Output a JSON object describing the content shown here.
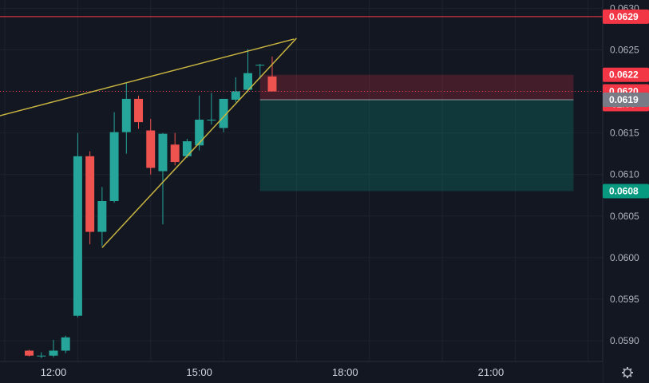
{
  "chart_data": {
    "type": "candlestick",
    "title": "",
    "xlabel": "",
    "ylabel": "",
    "ylim": [
      0.05875,
      0.0631
    ],
    "y_ticks": [
      "0.0590",
      "0.0595",
      "0.0600",
      "0.0605",
      "0.0610",
      "0.0615",
      "0.0620",
      "0.0625",
      "0.0630"
    ],
    "x_ticks": [
      {
        "label": "12:00",
        "hour": 12
      },
      {
        "label": "15:00",
        "hour": 15
      },
      {
        "label": "18:00",
        "hour": 18
      },
      {
        "label": "21:00",
        "hour": 21
      }
    ],
    "x_range_hours": [
      10.9,
      23.3
    ],
    "interval_minutes": 15,
    "grid": true,
    "candles": [
      {
        "t": 11.5,
        "o": 0.05888,
        "h": 0.05889,
        "l": 0.05881,
        "c": 0.05882
      },
      {
        "t": 11.75,
        "o": 0.05882,
        "h": 0.05886,
        "l": 0.05879,
        "c": 0.05882
      },
      {
        "t": 12.0,
        "o": 0.05882,
        "h": 0.05901,
        "l": 0.0588,
        "c": 0.05888
      },
      {
        "t": 12.25,
        "o": 0.05888,
        "h": 0.05906,
        "l": 0.05885,
        "c": 0.05904
      },
      {
        "t": 12.5,
        "o": 0.0593,
        "h": 0.0615,
        "l": 0.05928,
        "c": 0.06122
      },
      {
        "t": 12.75,
        "o": 0.06122,
        "h": 0.06128,
        "l": 0.06016,
        "c": 0.06031
      },
      {
        "t": 13.0,
        "o": 0.06031,
        "h": 0.06085,
        "l": 0.06014,
        "c": 0.06068
      },
      {
        "t": 13.25,
        "o": 0.06068,
        "h": 0.06175,
        "l": 0.06066,
        "c": 0.06151
      },
      {
        "t": 13.5,
        "o": 0.06151,
        "h": 0.06211,
        "l": 0.06125,
        "c": 0.06191
      },
      {
        "t": 13.75,
        "o": 0.06191,
        "h": 0.06195,
        "l": 0.06155,
        "c": 0.06163
      },
      {
        "t": 14.0,
        "o": 0.06153,
        "h": 0.06167,
        "l": 0.061,
        "c": 0.06108
      },
      {
        "t": 14.25,
        "o": 0.06104,
        "h": 0.0615,
        "l": 0.0604,
        "c": 0.06149
      },
      {
        "t": 14.5,
        "o": 0.06136,
        "h": 0.0615,
        "l": 0.06111,
        "c": 0.06115
      },
      {
        "t": 14.75,
        "o": 0.06122,
        "h": 0.06143,
        "l": 0.0612,
        "c": 0.0614
      },
      {
        "t": 15.0,
        "o": 0.06135,
        "h": 0.06195,
        "l": 0.06129,
        "c": 0.06166
      },
      {
        "t": 15.25,
        "o": 0.06166,
        "h": 0.06198,
        "l": 0.0616,
        "c": 0.06166
      },
      {
        "t": 15.5,
        "o": 0.06156,
        "h": 0.06191,
        "l": 0.06151,
        "c": 0.06191
      },
      {
        "t": 15.75,
        "o": 0.0619,
        "h": 0.06217,
        "l": 0.06187,
        "c": 0.062
      },
      {
        "t": 16.0,
        "o": 0.06202,
        "h": 0.06251,
        "l": 0.06199,
        "c": 0.06222
      },
      {
        "t": 16.25,
        "o": 0.06232,
        "h": 0.06233,
        "l": 0.06215,
        "c": 0.06232
      },
      {
        "t": 16.5,
        "o": 0.06218,
        "h": 0.06242,
        "l": 0.062,
        "c": 0.062
      }
    ],
    "trendlines": [
      {
        "from": {
          "t": 10.85,
          "v": 0.0617
        },
        "to": {
          "t": 16.95,
          "v": 0.06263
        },
        "color": "#c8b441"
      },
      {
        "from": {
          "t": 13.0,
          "v": 0.06012
        },
        "to": {
          "t": 17.0,
          "v": 0.06264
        },
        "color": "#c8b441"
      }
    ],
    "position": {
      "time_start": 16.25,
      "time_end": 22.7,
      "stop": 0.0622,
      "entry": 0.0619,
      "target": 0.0608,
      "stop_fill": "rgba(242,54,69,0.22)",
      "target_fill": "rgba(8,153,129,0.25)"
    },
    "horizontal_line": {
      "value": 0.0629,
      "color": "#f23645"
    },
    "current_price_line": {
      "value": 0.062,
      "color": "#f23645"
    },
    "price_tags": [
      {
        "label": "0.0629",
        "value": 0.0629,
        "color": "#f23645"
      },
      {
        "label": "0.0622",
        "value": 0.0622,
        "color": "#f23645"
      },
      {
        "label": "0.0620",
        "sublabel": "02:00",
        "value": 0.062,
        "color": "#f23645"
      },
      {
        "label": "0.0619",
        "value": 0.0619,
        "color": "#787b86"
      },
      {
        "label": "0.0608",
        "value": 0.0608,
        "color": "#089981"
      }
    ],
    "colors": {
      "background": "#131722",
      "grid": "#1e222d",
      "up": "#26a69a",
      "down": "#ef5350"
    }
  },
  "ui": {
    "settings_icon": "gear-icon"
  }
}
